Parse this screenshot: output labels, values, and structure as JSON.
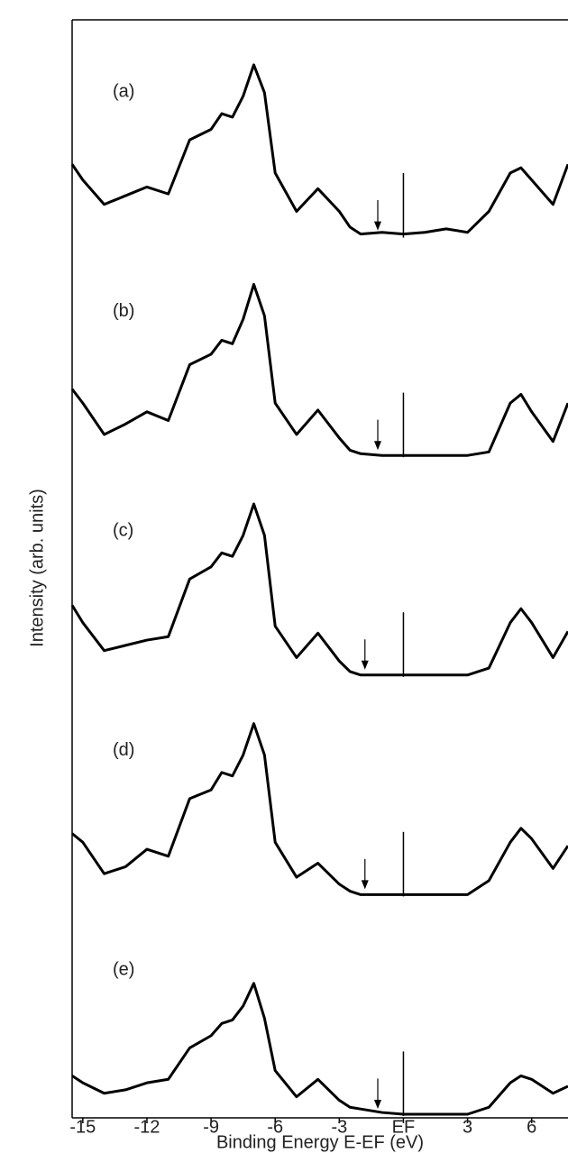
{
  "chart_data": [
    {
      "type": "line",
      "annotation": "(a)",
      "arrow_x": -1.2,
      "vline_x": 0,
      "xlim": [
        -15.5,
        7.7
      ],
      "ylim": [
        0,
        100
      ],
      "x": [
        -15.5,
        -15,
        -14,
        -13,
        -12,
        -11,
        -10,
        -9,
        -8.5,
        -8,
        -7.5,
        -7,
        -6.5,
        -6,
        -5,
        -4,
        -3,
        -2.5,
        -2,
        -1,
        0,
        1,
        2,
        3,
        4,
        5,
        5.5,
        6,
        7,
        7.7
      ],
      "series": [
        {
          "color": "#000000",
          "values": [
            41,
            32,
            18,
            23,
            28,
            24,
            55,
            61,
            70,
            68,
            80,
            98,
            82,
            36,
            14,
            27,
            14,
            5,
            1,
            2,
            1,
            2,
            4,
            2,
            14,
            36,
            39,
            32,
            18,
            41
          ]
        }
      ]
    },
    {
      "type": "line",
      "annotation": "(b)",
      "arrow_x": -1.2,
      "vline_x": 0,
      "xlim": [
        -15.5,
        7.7
      ],
      "ylim": [
        0,
        100
      ],
      "x": [
        -15.5,
        -15,
        -14,
        -13,
        -12,
        -11,
        -10,
        -9,
        -8.5,
        -8,
        -7.5,
        -7,
        -6.5,
        -6,
        -5,
        -4,
        -3,
        -2.5,
        -2,
        -1,
        0,
        1,
        2,
        3,
        4,
        5,
        5.5,
        6,
        7,
        7.7
      ],
      "series": [
        {
          "color": "#000000",
          "values": [
            38,
            30,
            12,
            18,
            25,
            20,
            52,
            58,
            66,
            64,
            78,
            98,
            80,
            30,
            12,
            26,
            10,
            3,
            1,
            0,
            0,
            0,
            0,
            0,
            2,
            30,
            35,
            25,
            8,
            30
          ]
        }
      ]
    },
    {
      "type": "line",
      "annotation": "(c)",
      "ylabel": "Intensity (arb. units)",
      "arrow_x": -1.8,
      "vline_x": 0,
      "xlim": [
        -15.5,
        7.7
      ],
      "ylim": [
        0,
        100
      ],
      "x": [
        -15.5,
        -15,
        -14,
        -13,
        -12,
        -11,
        -10,
        -9,
        -8.5,
        -8,
        -7.5,
        -7,
        -6.5,
        -6,
        -5,
        -4,
        -3,
        -2.5,
        -2,
        -1,
        0,
        1,
        2,
        3,
        4,
        5,
        5.5,
        6,
        7,
        7.7
      ],
      "series": [
        {
          "color": "#000000",
          "values": [
            40,
            30,
            14,
            17,
            20,
            22,
            55,
            62,
            70,
            68,
            80,
            98,
            80,
            28,
            10,
            24,
            8,
            2,
            0,
            0,
            0,
            0,
            0,
            0,
            4,
            30,
            38,
            30,
            10,
            25
          ]
        }
      ]
    },
    {
      "type": "line",
      "annotation": "(d)",
      "arrow_x": -1.8,
      "vline_x": 0,
      "xlim": [
        -15.5,
        7.7
      ],
      "ylim": [
        0,
        100
      ],
      "x": [
        -15.5,
        -15,
        -14,
        -13,
        -12,
        -11,
        -10,
        -9,
        -8.5,
        -8,
        -7.5,
        -7,
        -6.5,
        -6,
        -5,
        -4,
        -3,
        -2.5,
        -2,
        -1,
        0,
        1,
        2,
        3,
        4,
        5,
        5.5,
        6,
        7,
        7.7
      ],
      "series": [
        {
          "color": "#000000",
          "values": [
            35,
            30,
            12,
            16,
            26,
            22,
            55,
            60,
            70,
            68,
            80,
            98,
            80,
            30,
            10,
            18,
            6,
            2,
            0,
            0,
            0,
            0,
            0,
            0,
            8,
            30,
            38,
            32,
            15,
            28
          ]
        }
      ]
    },
    {
      "type": "line",
      "annotation": "(e)",
      "arrow_x": -1.2,
      "vline_x": 0,
      "xlim": [
        -15.5,
        7.7
      ],
      "ylim": [
        0,
        100
      ],
      "xlabel": "Binding Energy E-EF (eV)",
      "xticks": [
        -15,
        -12,
        -9,
        -6,
        -3,
        {
          "value": 0,
          "label": "EF"
        },
        3,
        6
      ],
      "x": [
        -15.5,
        -15,
        -14,
        -13,
        -12,
        -11,
        -10,
        -9,
        -8.5,
        -8,
        -7.5,
        -7,
        -6.5,
        -6,
        -5,
        -4,
        -3,
        -2.5,
        -2,
        -1,
        0,
        1,
        2,
        3,
        4,
        5,
        5.5,
        6,
        7,
        7.7
      ],
      "series": [
        {
          "color": "#000000",
          "values": [
            22,
            18,
            12,
            14,
            18,
            20,
            38,
            45,
            52,
            54,
            62,
            75,
            55,
            25,
            10,
            20,
            8,
            4,
            3,
            1,
            0,
            0,
            0,
            0,
            4,
            18,
            22,
            20,
            12,
            16
          ]
        }
      ]
    }
  ]
}
